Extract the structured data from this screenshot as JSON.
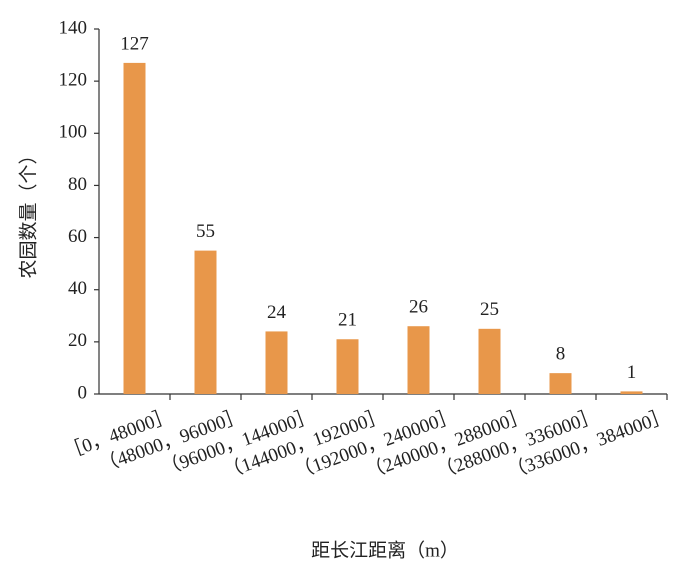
{
  "chart_data": {
    "type": "bar",
    "x_label": "距长江距离（m）",
    "y_label": "农园数量（个）",
    "categories": [
      "［0，48000］",
      "（48000，96000］",
      "（96000，144000］",
      "（144000，192000］",
      "（192000，240000］",
      "（240000，288000］",
      "（288000，336000］",
      "（336000，384000］"
    ],
    "values": [
      127,
      55,
      24,
      21,
      26,
      25,
      8,
      1
    ],
    "color": "#e8974a",
    "ylim": [
      0,
      140
    ],
    "yticks": [
      0,
      20,
      40,
      60,
      80,
      100,
      120,
      140
    ],
    "grid": false
  }
}
